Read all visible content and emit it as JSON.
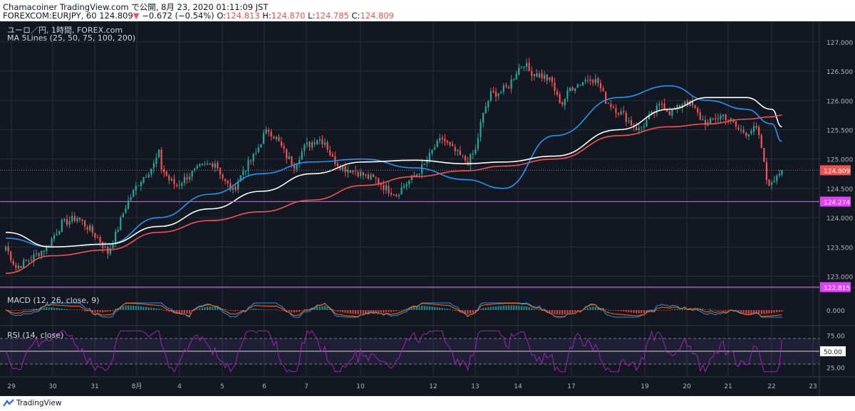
{
  "header": {
    "publish_line": "Chamacoiner TradingView.com で公開, 8月 23, 2020 01:11:09 JST",
    "symbol_prefix": "FOREXCOM:EURJPY, 60 124.809",
    "change_arrow": "▼",
    "change_text": "−0.672 (−0.54%)",
    "o_label": "O:",
    "o_value": "124.813",
    "h_label": "H:",
    "h_value": "124.870",
    "l_label": "L:",
    "l_value": "124.785",
    "c_label": "C:",
    "c_value": "124.809"
  },
  "legend": {
    "symbol_name": "ユーロ／円, 1時間, FOREX.com",
    "ma_label": "MA 5Lines (25, 50, 75, 100, 200)",
    "macd_label": "MACD (12, 26, close, 9)",
    "rsi_label": "RSI (14, close)"
  },
  "footer": {
    "brand": "TradingView"
  },
  "colors": {
    "background": "#131722",
    "grid": "#2a2e39",
    "up": "#26a69a",
    "down": "#ef5350",
    "ma_blue": "#2196f3",
    "ma_white": "#ffffff",
    "ma_red": "#ef5350",
    "level": "#e040fb",
    "macd_line": "#2196f3",
    "signal_line": "#ff6d00",
    "rsi_line": "#9c27b0",
    "rsi_band": "#7e57c2",
    "text": "#b2b5be"
  },
  "chart_data": [
    {
      "type": "candlestick",
      "title": "ユーロ／円, 1時間, FOREX.com",
      "ylim": [
        122.8,
        127.35
      ],
      "y_ticks": [
        "127.000",
        "126.500",
        "126.000",
        "125.500",
        "125.000",
        "124.500",
        "124.000",
        "123.500",
        "123.000"
      ],
      "x_ticks": [
        "29",
        "30",
        "31",
        "8月",
        "4",
        "5",
        "6",
        "7",
        "10",
        "12",
        "13",
        "14",
        "17",
        "19",
        "20",
        "21",
        "22",
        "23"
      ],
      "anchors": [
        [
          0,
          123.5
        ],
        [
          4,
          123.15
        ],
        [
          10,
          123.3
        ],
        [
          16,
          123.5
        ],
        [
          22,
          123.9
        ],
        [
          28,
          124.0
        ],
        [
          33,
          123.8
        ],
        [
          37,
          123.6
        ],
        [
          40,
          123.4
        ],
        [
          43,
          123.7
        ],
        [
          47,
          124.2
        ],
        [
          52,
          124.6
        ],
        [
          56,
          124.8
        ],
        [
          58,
          124.9
        ],
        [
          60,
          125.1
        ],
        [
          61,
          124.85
        ],
        [
          64,
          124.65
        ],
        [
          67,
          124.55
        ],
        [
          71,
          124.7
        ],
        [
          76,
          124.85
        ],
        [
          82,
          124.95
        ],
        [
          86,
          124.6
        ],
        [
          89,
          124.45
        ],
        [
          93,
          124.8
        ],
        [
          98,
          125.1
        ],
        [
          101,
          125.4
        ],
        [
          103,
          125.5
        ],
        [
          106,
          125.35
        ],
        [
          110,
          125.05
        ],
        [
          113,
          124.9
        ],
        [
          117,
          125.2
        ],
        [
          122,
          125.35
        ],
        [
          125,
          125.3
        ],
        [
          128,
          125.0
        ],
        [
          132,
          124.85
        ],
        [
          137,
          124.8
        ],
        [
          141,
          124.7
        ],
        [
          145,
          124.65
        ],
        [
          149,
          124.5
        ],
        [
          153,
          124.4
        ],
        [
          156,
          124.55
        ],
        [
          160,
          124.7
        ],
        [
          164,
          124.9
        ],
        [
          168,
          125.2
        ],
        [
          171,
          125.35
        ],
        [
          174,
          125.2
        ],
        [
          178,
          125.05
        ],
        [
          181,
          124.95
        ],
        [
          184,
          125.15
        ],
        [
          186,
          125.6
        ],
        [
          188,
          125.9
        ],
        [
          190,
          126.1
        ],
        [
          194,
          126.15
        ],
        [
          197,
          126.25
        ],
        [
          200,
          126.5
        ],
        [
          203,
          126.65
        ],
        [
          205,
          126.5
        ],
        [
          208,
          126.45
        ],
        [
          211,
          126.4
        ],
        [
          214,
          126.3
        ],
        [
          216,
          126.05
        ],
        [
          218,
          125.95
        ],
        [
          221,
          126.2
        ],
        [
          225,
          126.3
        ],
        [
          229,
          126.4
        ],
        [
          232,
          126.3
        ],
        [
          235,
          126.0
        ],
        [
          239,
          125.85
        ],
        [
          242,
          125.75
        ],
        [
          245,
          125.6
        ],
        [
          248,
          125.5
        ],
        [
          251,
          125.65
        ],
        [
          254,
          125.8
        ],
        [
          257,
          125.95
        ],
        [
          260,
          125.8
        ],
        [
          263,
          125.85
        ],
        [
          266,
          126.0
        ],
        [
          269,
          125.9
        ],
        [
          272,
          125.7
        ],
        [
          275,
          125.6
        ],
        [
          278,
          125.7
        ],
        [
          281,
          125.75
        ],
        [
          284,
          125.65
        ],
        [
          287,
          125.5
        ],
        [
          290,
          125.45
        ],
        [
          292,
          125.5
        ],
        [
          294,
          125.5
        ],
        [
          296,
          125.2
        ],
        [
          297,
          124.9
        ],
        [
          298,
          124.65
        ],
        [
          300,
          124.55
        ],
        [
          302,
          124.75
        ],
        [
          304,
          124.81
        ]
      ],
      "n_candles": 305,
      "last_close": 124.809,
      "series": [
        {
          "name": "MA 25",
          "color": "#2196f3",
          "values": [
            123.65,
            123.5,
            123.55,
            124.0,
            124.4,
            124.75,
            124.95,
            125.0,
            124.85,
            124.65,
            124.5,
            125.4,
            126.05,
            126.25,
            126.0,
            125.85,
            125.6,
            125.3
          ]
        },
        {
          "name": "MA 50",
          "color": "#ffffff",
          "values": [
            123.75,
            123.5,
            123.55,
            123.85,
            124.15,
            124.45,
            124.75,
            124.95,
            124.98,
            124.92,
            124.95,
            125.05,
            125.5,
            125.85,
            126.05,
            126.05,
            125.85,
            125.55
          ]
        },
        {
          "name": "MA 100",
          "color": "#ef5350",
          "values": [
            123.05,
            123.35,
            123.45,
            123.75,
            123.95,
            124.1,
            124.3,
            124.55,
            124.7,
            124.8,
            124.88,
            125.0,
            125.4,
            125.55,
            125.6,
            125.68,
            125.72,
            125.75
          ]
        }
      ],
      "ma_x": [
        0,
        18,
        40,
        60,
        80,
        100,
        120,
        140,
        160,
        180,
        195,
        215,
        240,
        260,
        275,
        290,
        300,
        304
      ],
      "price_labels": [
        {
          "value": 124.809,
          "text": "124.809"
        },
        {
          "value": 124.274,
          "text": "124.274"
        },
        {
          "value": 122.815,
          "text": "122.815"
        }
      ],
      "horizontal_levels": [
        124.274,
        122.815
      ]
    },
    {
      "type": "line",
      "title": "MACD (12, 26, close, 9)",
      "ylim": [
        -0.35,
        0.35
      ],
      "y_ticks": [
        "0.000"
      ],
      "series": [
        {
          "name": "MACD",
          "color": "#2196f3"
        },
        {
          "name": "Signal",
          "color": "#ff6d00"
        }
      ]
    },
    {
      "type": "line",
      "title": "RSI (14, close)",
      "ylim": [
        10,
        90
      ],
      "y_ticks": [
        "75.00",
        "50.00",
        "25.00"
      ],
      "levels": [
        70,
        50,
        30
      ],
      "current_label": "50.00"
    }
  ]
}
